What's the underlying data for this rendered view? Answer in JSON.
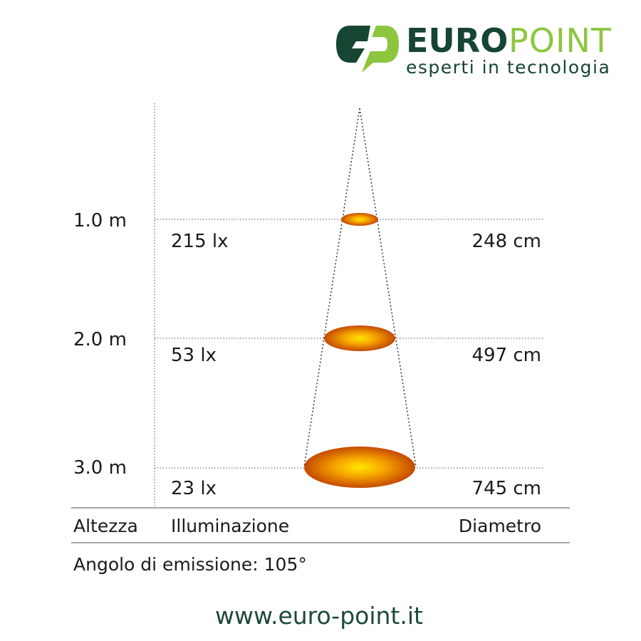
{
  "logo": {
    "brand_part1": "EURO",
    "brand_part2": "POINT",
    "tagline": "esperti in tecnologia",
    "colors": {
      "dark_green": "#164532",
      "lime": "#8cc63f"
    }
  },
  "levels": [
    {
      "height": "1.0 m",
      "illuminance": "215 lx",
      "diameter": "248 cm"
    },
    {
      "height": "2.0 m",
      "illuminance": "53 lx",
      "diameter": "497 cm"
    },
    {
      "height": "3.0 m",
      "illuminance": "23 lx",
      "diameter": "745 cm"
    }
  ],
  "headers": {
    "height": "Altezza",
    "illuminance": "Illuminazione",
    "diameter": "Diametro"
  },
  "beam_angle": "Angolo di emissione: 105°",
  "website": "www.euro-point.it"
}
